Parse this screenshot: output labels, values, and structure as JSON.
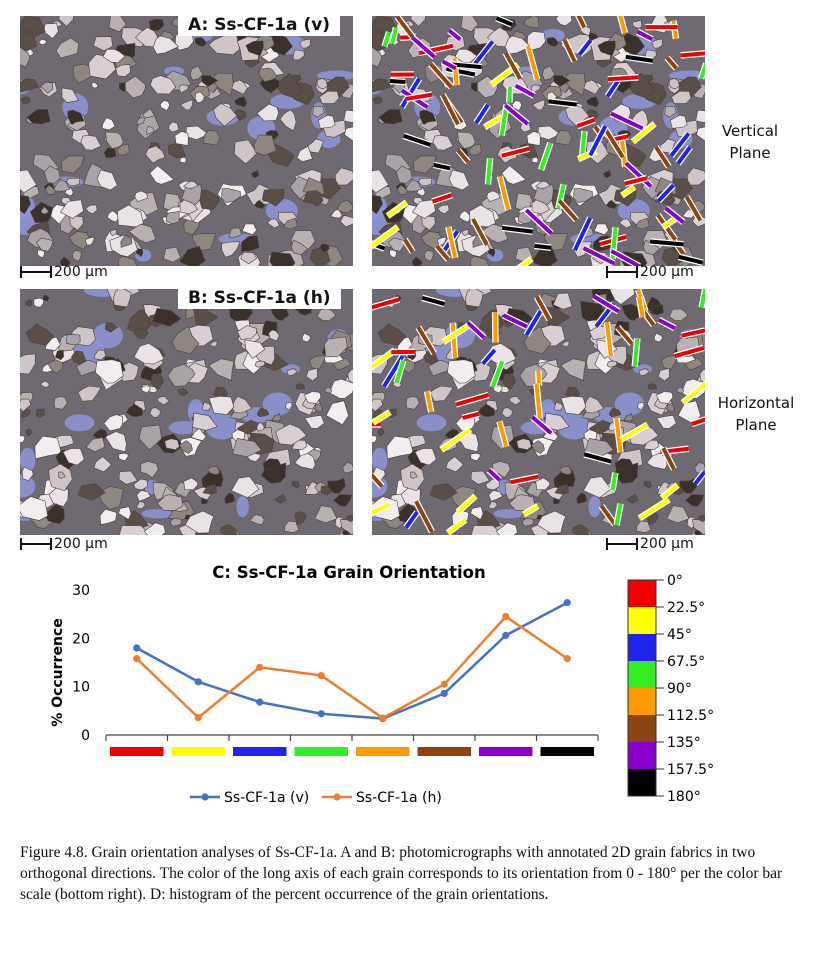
{
  "panels": {
    "a_title": "A: Ss-CF-1a (v)",
    "b_title": "B: Ss-CF-1a (h)",
    "c_title": "C: Ss-CF-1a Grain Orientation",
    "vertical_label": [
      "Vertical",
      "Plane"
    ],
    "horizontal_label": [
      "Horizontal",
      "Plane"
    ],
    "scale_label": "200 µm"
  },
  "chart_data": {
    "type": "line",
    "title": "C: Ss-CF-1a Grain Orientation",
    "xlabel": "",
    "ylabel": "% Occurrence",
    "ylim": [
      0,
      30
    ],
    "yticks": [
      0,
      10,
      20,
      30
    ],
    "category_colors": [
      "#ee0000",
      "#ffff00",
      "#2222ee",
      "#33ee22",
      "#ff9900",
      "#8b4513",
      "#8800cc",
      "#000000"
    ],
    "series": [
      {
        "name": "Ss-CF-1a (v)",
        "color": "#4472c4",
        "values": [
          18.0,
          11.0,
          6.8,
          4.4,
          3.4,
          8.6,
          20.6,
          27.4
        ]
      },
      {
        "name": "Ss-CF-1a (h)",
        "color": "#ed7d31",
        "values": [
          15.8,
          3.6,
          14.0,
          12.3,
          3.5,
          10.5,
          24.5,
          15.8
        ]
      }
    ],
    "legend_position": "bottom",
    "grid": false
  },
  "colorbar": {
    "labels": [
      "0°",
      "22.5°",
      "45°",
      "67.5°",
      "90°",
      "112.5°",
      "135°",
      "157.5°",
      "180°"
    ],
    "colors": [
      "#ee0000",
      "#ffff00",
      "#2222ee",
      "#33ee22",
      "#ff9900",
      "#8b4513",
      "#8800cc",
      "#000000"
    ]
  },
  "caption": "Figure 4.8. Grain orientation analyses of Ss-CF-1a. A and B: photomicrographs with annotated 2D grain fabrics in two orthogonal directions. The color of the long axis of each grain corresponds to its orientation from 0 - 180° per the color bar scale (bottom right). D: histogram of the percent occurrence of the grain orientations."
}
